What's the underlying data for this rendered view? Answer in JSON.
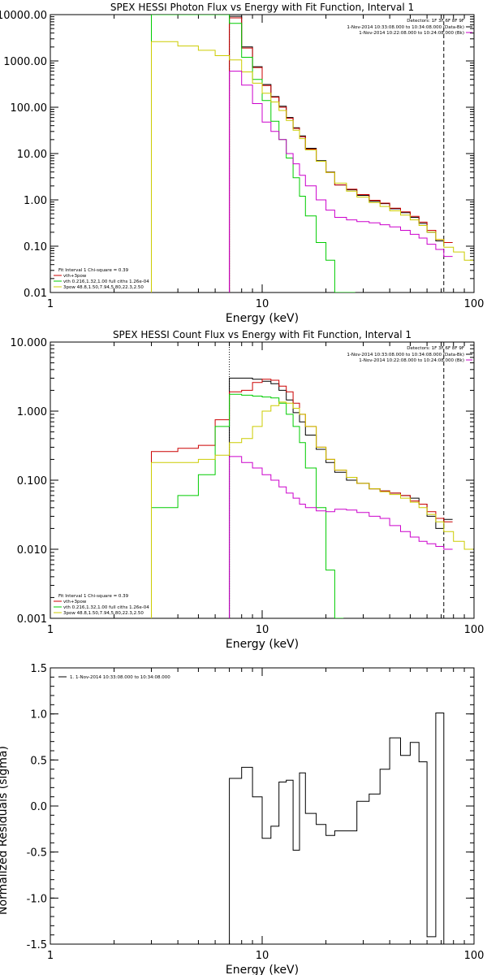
{
  "chart_data": [
    {
      "type": "line",
      "title": "SPEX HESSI Photon Flux vs Energy with Fit Function, Interval 1",
      "xlabel": "Energy (keV)",
      "ylabel": "",
      "xscale": "log",
      "yscale": "log",
      "xlim": [
        1,
        100
      ],
      "ylim": [
        0.01,
        10000
      ],
      "xtick_labels": [
        "1",
        "10",
        "100"
      ],
      "ytick_labels": [
        "10000.00",
        "1000.00",
        "100.00",
        "10.00",
        "1.00",
        "0.10",
        "0.01"
      ],
      "detectors": "Detectors: 1F 3F 6F 8F 9F",
      "legend_top": [
        {
          "text": "1-Nov-2014 10:33:08.000 to 10:34:08.000 (Data-Bk)",
          "color": "#000000"
        },
        {
          "text": "1-Nov-2014 10:22:08.000 to 10:24:08.000 (Bk)",
          "color": "#cc00cc"
        }
      ],
      "fit_info": "Fit Interval 1   Chi-square = 0.39",
      "legend_bottom": [
        {
          "text": "vth+3pow",
          "color": "#cc0000"
        },
        {
          "text": "vth 0.216,1.32,1.00  full ciths 1.26e-04",
          "color": "#00cc00"
        },
        {
          "text": "3pow 48.8,1.50,7.94,5.80,22.3,2.50",
          "color": "#cccc00"
        }
      ],
      "fit_range_keV": [
        7.0,
        72.0
      ],
      "series": [
        {
          "name": "1-Nov-2014 10:33:08.000 to 10:34:08.000 (Data-Bk)",
          "color": "#000000",
          "x": [
            7,
            8,
            9,
            10,
            11,
            12,
            13,
            14,
            15,
            16,
            18,
            20,
            22,
            25,
            28,
            32,
            36,
            40,
            45,
            50,
            55,
            60,
            66,
            72
          ],
          "y": [
            9200,
            2000,
            750,
            310,
            170,
            105,
            60,
            36,
            24,
            13,
            7,
            4,
            2.1,
            1.65,
            1.25,
            0.93,
            0.83,
            0.64,
            0.53,
            0.42,
            0.31,
            0.2,
            0.13,
            0.12
          ]
        },
        {
          "name": "vth+3pow",
          "color": "#cc0000",
          "x": [
            7,
            8,
            9,
            10,
            11,
            12,
            13,
            14,
            15,
            16,
            18,
            20,
            22,
            25,
            28,
            32,
            36,
            40,
            45,
            50,
            55,
            60,
            66,
            72
          ],
          "y": [
            8500,
            1900,
            720,
            295,
            165,
            100,
            58,
            35,
            23,
            12.5,
            6.8,
            3.9,
            2.1,
            1.7,
            1.3,
            0.98,
            0.85,
            0.66,
            0.55,
            0.44,
            0.33,
            0.22,
            0.14,
            0.12
          ]
        },
        {
          "name": "vth 0.216,1.32,1.00  full ciths 1.26e-04",
          "color": "#00cc00",
          "x": [
            3,
            7,
            8,
            9,
            10,
            11,
            12,
            13,
            14,
            15,
            16,
            18,
            20,
            22,
            25
          ],
          "y": [
            10000,
            6500,
            1200,
            400,
            140,
            50,
            20,
            8,
            3,
            1.2,
            0.45,
            0.12,
            0.05,
            0.01,
            0.01
          ]
        },
        {
          "name": "3pow 48.8,1.50,7.94,5.80,22.3,2.50",
          "color": "#cccc00",
          "x": [
            3,
            4,
            5,
            6,
            7,
            8,
            9,
            10,
            11,
            12,
            13,
            14,
            15,
            16,
            18,
            20,
            22,
            25,
            28,
            32,
            36,
            40,
            45,
            50,
            55,
            60,
            66,
            72,
            80,
            90
          ],
          "y": [
            2600,
            2100,
            1700,
            1300,
            1050,
            580,
            330,
            200,
            130,
            85,
            52,
            32,
            21,
            12,
            6.8,
            3.9,
            2.3,
            1.55,
            1.15,
            0.88,
            0.72,
            0.58,
            0.47,
            0.37,
            0.28,
            0.2,
            0.14,
            0.095,
            0.075,
            0.05
          ]
        },
        {
          "name": "1-Nov-2014 10:22:08.000 to 10:24:08.000 (Bk)",
          "color": "#cc00cc",
          "x": [
            7,
            8,
            9,
            10,
            11,
            12,
            13,
            14,
            15,
            16,
            18,
            20,
            22,
            25,
            28,
            32,
            36,
            40,
            45,
            50,
            55,
            60,
            66,
            72
          ],
          "y": [
            600,
            300,
            120,
            48,
            30,
            20,
            10,
            6,
            3.4,
            2,
            1,
            0.6,
            0.42,
            0.37,
            0.34,
            0.32,
            0.29,
            0.26,
            0.22,
            0.18,
            0.15,
            0.11,
            0.085,
            0.06
          ]
        }
      ]
    },
    {
      "type": "line",
      "title": "SPEX HESSI Count Flux vs Energy with Fit Function, Interval 1",
      "xlabel": "Energy (keV)",
      "ylabel": "",
      "xscale": "log",
      "yscale": "log",
      "xlim": [
        1,
        100
      ],
      "ylim": [
        0.001,
        10
      ],
      "xtick_labels": [
        "1",
        "10",
        "100"
      ],
      "ytick_labels": [
        "10.000",
        "1.000",
        "0.100",
        "0.010",
        "0.001"
      ],
      "detectors": "Detectors: 1F 3F 6F 8F 9F",
      "legend_top": [
        {
          "text": "1-Nov-2014 10:33:08.000 to 10:34:08.000 (Data-Bk)",
          "color": "#000000"
        },
        {
          "text": "1-Nov-2014 10:22:08.000 to 10:24:08.000 (Bk)",
          "color": "#cc00cc"
        }
      ],
      "fit_info": "Fit Interval 1   Chi-square = 0.39",
      "legend_bottom": [
        {
          "text": "vth+3pow",
          "color": "#cc0000"
        },
        {
          "text": "vth 0.216,1.32,1.00  full ciths 1.26e-04",
          "color": "#00cc00"
        },
        {
          "text": "3pow 48.8,1.50,7.94,5.80,22.3,2.50",
          "color": "#cccc00"
        }
      ],
      "fit_range_keV": [
        7.0,
        72.0
      ],
      "series": [
        {
          "name": "1-Nov-2014 10:33:08.000 to 10:34:08.000 (Data-Bk)",
          "color": "#000000",
          "x": [
            7,
            8,
            9,
            10,
            11,
            12,
            13,
            14,
            15,
            16,
            18,
            20,
            22,
            25,
            28,
            32,
            36,
            40,
            45,
            50,
            55,
            60,
            66,
            72
          ],
          "y": [
            3.0,
            3.0,
            2.9,
            2.7,
            2.5,
            2.0,
            1.45,
            0.95,
            0.7,
            0.45,
            0.28,
            0.18,
            0.13,
            0.1,
            0.09,
            0.075,
            0.07,
            0.065,
            0.06,
            0.055,
            0.045,
            0.03,
            0.02,
            0.027
          ]
        },
        {
          "name": "vth+3pow",
          "color": "#cc0000",
          "x": [
            3,
            4,
            5,
            6,
            7,
            8,
            9,
            10,
            11,
            12,
            13,
            14,
            15,
            16,
            18,
            20,
            22,
            25,
            28,
            32,
            36,
            40,
            45,
            50,
            55,
            60,
            66,
            72
          ],
          "y": [
            0.26,
            0.29,
            0.32,
            0.75,
            1.9,
            2.0,
            2.6,
            2.9,
            2.8,
            2.3,
            1.9,
            1.3,
            0.9,
            0.6,
            0.3,
            0.2,
            0.14,
            0.11,
            0.09,
            0.075,
            0.07,
            0.065,
            0.06,
            0.05,
            0.045,
            0.035,
            0.028,
            0.025
          ]
        },
        {
          "name": "vth 0.216,1.32,1.00  full ciths 1.26e-04",
          "color": "#00cc00",
          "x": [
            3,
            4,
            5,
            6,
            7,
            8,
            9,
            10,
            11,
            12,
            13,
            14,
            15,
            16,
            18,
            20,
            22
          ],
          "y": [
            0.04,
            0.06,
            0.12,
            0.6,
            1.75,
            1.7,
            1.65,
            1.6,
            1.55,
            1.3,
            0.9,
            0.6,
            0.35,
            0.15,
            0.04,
            0.005,
            0.001
          ]
        },
        {
          "name": "3pow 48.8,1.50,7.94,5.80,22.3,2.50",
          "color": "#cccc00",
          "x": [
            3,
            4,
            5,
            6,
            7,
            8,
            9,
            10,
            11,
            12,
            13,
            14,
            15,
            16,
            18,
            20,
            22,
            25,
            28,
            32,
            36,
            40,
            45,
            50,
            55,
            60,
            66,
            72,
            80,
            90
          ],
          "y": [
            0.18,
            0.18,
            0.2,
            0.23,
            0.35,
            0.4,
            0.6,
            1.0,
            1.2,
            1.35,
            1.3,
            1.1,
            0.9,
            0.6,
            0.3,
            0.2,
            0.14,
            0.11,
            0.09,
            0.075,
            0.068,
            0.062,
            0.055,
            0.048,
            0.04,
            0.032,
            0.025,
            0.018,
            0.013,
            0.01
          ]
        },
        {
          "name": "1-Nov-2014 10:22:08.000 to 10:24:08.000 (Bk)",
          "color": "#cc00cc",
          "x": [
            7,
            8,
            9,
            10,
            11,
            12,
            13,
            14,
            15,
            16,
            18,
            20,
            22,
            25,
            28,
            32,
            36,
            40,
            45,
            50,
            55,
            60,
            66,
            72
          ],
          "y": [
            0.22,
            0.18,
            0.15,
            0.12,
            0.1,
            0.08,
            0.065,
            0.055,
            0.045,
            0.04,
            0.036,
            0.035,
            0.038,
            0.037,
            0.034,
            0.03,
            0.028,
            0.022,
            0.018,
            0.015,
            0.013,
            0.012,
            0.011,
            0.01
          ]
        }
      ]
    },
    {
      "type": "line",
      "title": "",
      "xlabel": "Energy (keV)",
      "ylabel": "Normalized Residuals (sigma)",
      "xscale": "log",
      "yscale": "linear",
      "xlim": [
        1,
        100
      ],
      "ylim": [
        -1.5,
        1.5
      ],
      "xtick_labels": [
        "1",
        "10",
        "100"
      ],
      "ytick_labels": [
        "1.5",
        "1.0",
        "0.5",
        "0.0",
        "-0.5",
        "-1.0",
        "-1.5"
      ],
      "legend": [
        {
          "text": "1. 1-Nov-2014 10:33:08.000 to 10:34:08.000",
          "color": "#000000"
        }
      ],
      "series": [
        {
          "name": "1. 1-Nov-2014 10:33:08.000 to 10:34:08.000",
          "color": "#000000",
          "x": [
            7,
            8,
            9,
            10,
            11,
            12,
            13,
            14,
            15,
            16,
            18,
            20,
            22,
            25,
            28,
            32,
            36,
            40,
            45,
            50,
            55,
            60,
            66,
            72
          ],
          "y": [
            0.3,
            0.42,
            0.1,
            -0.35,
            -0.22,
            0.26,
            0.28,
            -0.48,
            0.36,
            -0.08,
            -0.2,
            -0.32,
            -0.27,
            -0.27,
            0.05,
            0.13,
            0.4,
            0.74,
            0.55,
            0.69,
            0.48,
            -1.42,
            1.01,
            -1.5
          ]
        }
      ]
    }
  ]
}
